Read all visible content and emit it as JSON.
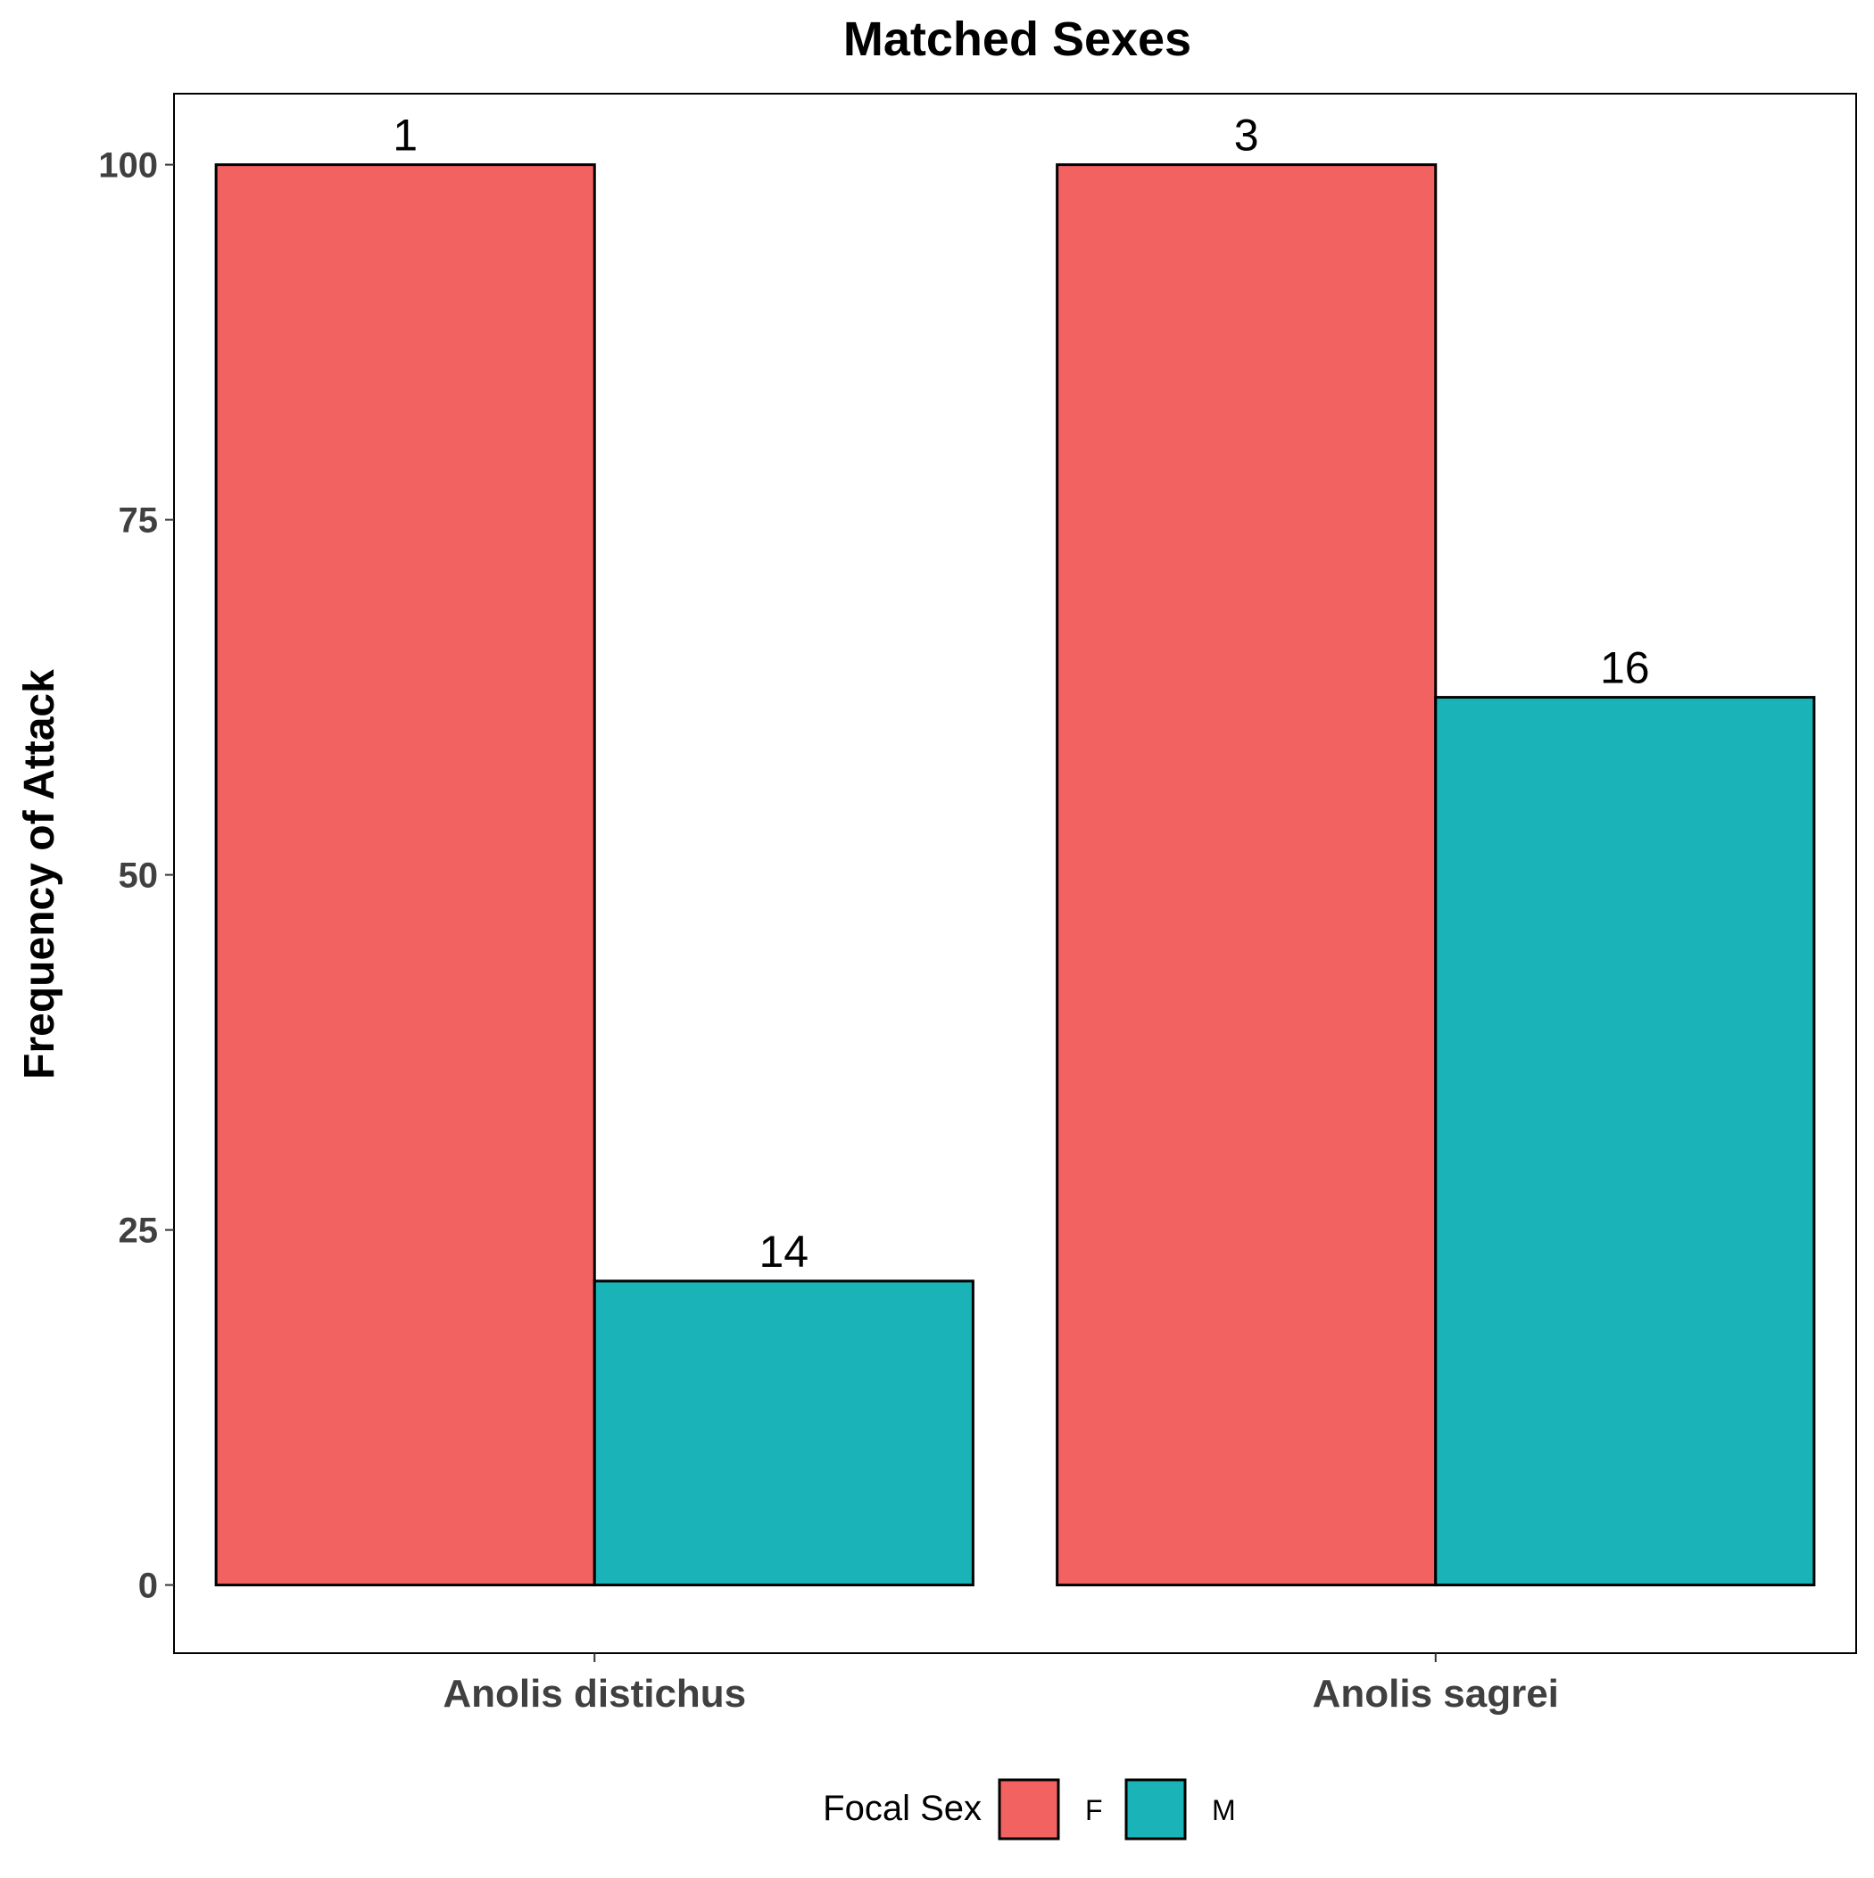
{
  "chart_data": {
    "type": "bar",
    "title": "Matched Sexes",
    "xlabel": "",
    "ylabel": "Frequency of Attack",
    "categories": [
      "Anolis distichus",
      "Anolis sagrei"
    ],
    "series": [
      {
        "name": "F",
        "color": "#F26260",
        "values": [
          100,
          100
        ],
        "labels": [
          "1",
          "3"
        ]
      },
      {
        "name": "M",
        "color": "#1AB3B7",
        "values": [
          21.4,
          62.5
        ],
        "labels": [
          "14",
          "16"
        ]
      }
    ],
    "ylim": [
      -4.8,
      105
    ],
    "yticks": [
      0,
      25,
      50,
      75,
      100
    ],
    "ytick_labels": [
      "0",
      "25",
      "50",
      "75",
      "100"
    ],
    "grid": false,
    "legend": {
      "title": "Focal Sex",
      "position": "bottom"
    }
  }
}
